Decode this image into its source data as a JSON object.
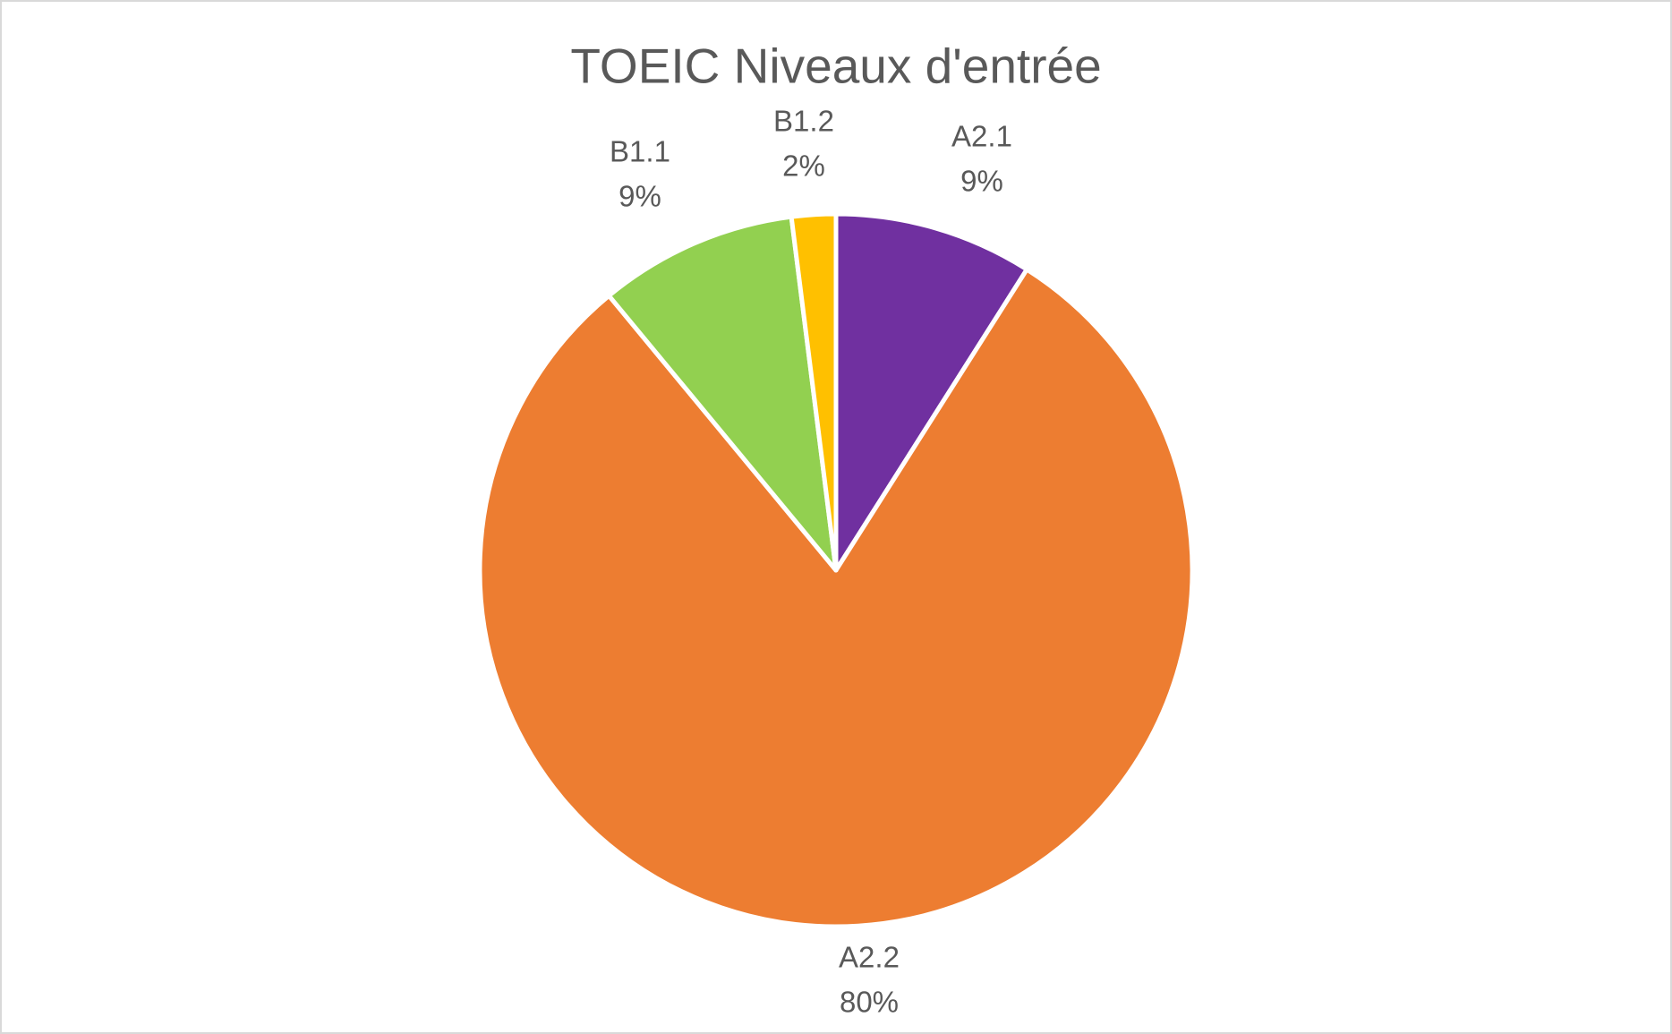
{
  "chart_data": {
    "type": "pie",
    "title": "TOEIC Niveaux d'entrée",
    "categories": [
      "A2.1",
      "A2.2",
      "B1.1",
      "B1.2"
    ],
    "values": [
      9,
      80,
      9,
      2
    ],
    "value_labels": [
      "9%",
      "80%",
      "9%",
      "2%"
    ],
    "colors": [
      "#7030a0",
      "#ed7d31",
      "#92d050",
      "#ffc000"
    ]
  }
}
